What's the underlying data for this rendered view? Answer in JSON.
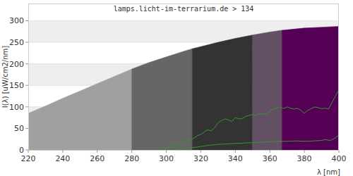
{
  "chart_data": {
    "type": "line",
    "title": "lamps.licht-im-terrarium.de > 134",
    "x_label": "λ [nm]",
    "y_label": "I(λ) [uW/cm2/nm]",
    "xlim": [
      220,
      400
    ],
    "ylim": [
      0,
      340
    ],
    "xticks": [
      220,
      240,
      260,
      280,
      300,
      320,
      340,
      360,
      380,
      400
    ],
    "yticks": [
      0,
      50,
      100,
      150,
      200,
      250,
      300
    ],
    "grid": true,
    "series": [
      {
        "type": "area",
        "color": "#a0a0a0",
        "x": [
          220,
          230,
          240,
          250,
          260,
          270,
          280
        ],
        "values": [
          85,
          102,
          120,
          137,
          154,
          171,
          188
        ]
      },
      {
        "type": "area",
        "color": "#666666",
        "x": [
          280,
          290,
          300,
          310,
          315
        ],
        "values": [
          188,
          203,
          216,
          229,
          235
        ]
      },
      {
        "type": "area",
        "color": "#333333",
        "x": [
          315,
          320,
          330,
          340,
          350
        ],
        "values": [
          235,
          240,
          250,
          259,
          267
        ]
      },
      {
        "type": "area",
        "color": "#645064",
        "x": [
          350,
          360,
          367
        ],
        "values": [
          267,
          274,
          278
        ]
      },
      {
        "type": "area",
        "color": "#550055",
        "x": [
          367,
          370,
          380,
          390,
          400
        ],
        "values": [
          278,
          279,
          283,
          285,
          287
        ]
      },
      {
        "type": "line",
        "color": "#2f9a2f",
        "x": [
          295,
          300,
          305,
          310,
          315,
          318,
          320,
          322,
          324,
          326,
          328,
          330,
          332,
          334,
          336,
          338,
          340,
          342,
          344,
          346,
          348,
          350,
          352,
          354,
          356,
          358,
          360,
          362,
          364,
          366,
          368,
          370,
          372,
          374,
          376,
          378,
          380,
          382,
          384,
          386,
          388,
          390,
          392,
          394,
          396,
          398,
          400
        ],
        "values": [
          0,
          4,
          10,
          17,
          25,
          33,
          36,
          42,
          47,
          44,
          52,
          63,
          68,
          72,
          70,
          66,
          75,
          72,
          73,
          78,
          80,
          82,
          80,
          85,
          83,
          84,
          90,
          95,
          97,
          100,
          96,
          100,
          97,
          95,
          97,
          92,
          85,
          92,
          96,
          100,
          98,
          96,
          97,
          95,
          110,
          125,
          140
        ]
      },
      {
        "type": "line",
        "color": "#2f9a2f",
        "x": [
          305,
          310,
          315,
          320,
          325,
          330,
          335,
          340,
          345,
          350,
          355,
          360,
          365,
          370,
          375,
          380,
          385,
          390,
          392,
          395,
          398,
          400
        ],
        "values": [
          0,
          3,
          5,
          8,
          11,
          13,
          14,
          15,
          16,
          17,
          18,
          19,
          20,
          20,
          21,
          20,
          21,
          22,
          24,
          22,
          28,
          35
        ]
      }
    ]
  }
}
